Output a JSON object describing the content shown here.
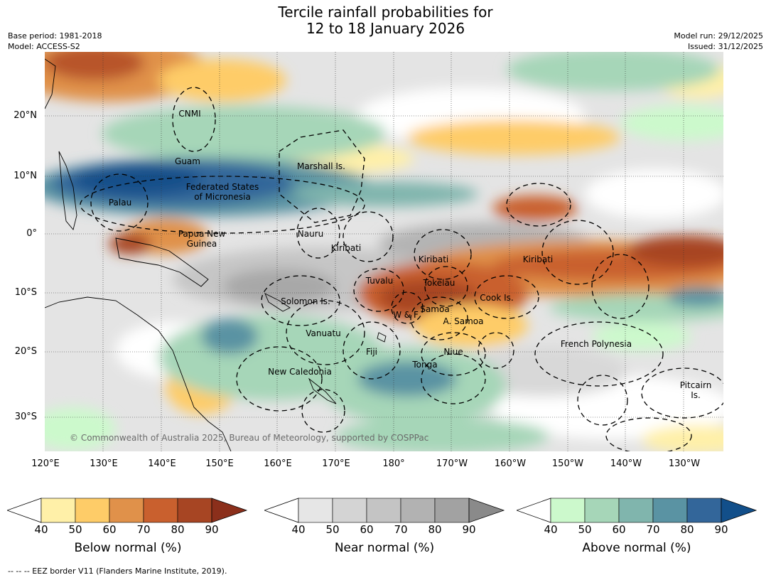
{
  "title_line1": "Tercile rainfall probabilities for",
  "title_line2": "12 to 18 January 2026",
  "base_period": "Base period: 1981-2018",
  "model": "Model: ACCESS-S2",
  "model_run": "Model run: 29/12/2025",
  "issued": "Issued: 31/12/2025",
  "lat_labels": [
    "20°N",
    "10°N",
    "0°",
    "10°S",
    "20°S",
    "30°S"
  ],
  "lon_labels": [
    "120°E",
    "130°E",
    "140°E",
    "150°E",
    "160°E",
    "170°E",
    "180°",
    "170°W",
    "160°W",
    "150°W",
    "140°W",
    "130°W"
  ],
  "regions": {
    "cnmi": "CNMI",
    "guam": "Guam",
    "marshall": "Marshall Is.",
    "fsm_1": "Federated States",
    "fsm_2": "of Micronesia",
    "palau": "Palau",
    "png_1": "Papua New",
    "png_2": "Guinea",
    "nauru": "Nauru",
    "kiribati_w": "Kiribati",
    "kiribati_c": "Kiribati",
    "kiribati_e": "Kiribati",
    "tuvalu": "Tuvalu",
    "tokelau": "Tokelau",
    "cook": "Cook Is.",
    "solomon": "Solomon Is.",
    "wf": "W & F",
    "samoa": "Samoa",
    "asamoa": "A. Samoa",
    "vanuatu": "Vanuatu",
    "fiji": "Fiji",
    "niue": "Niue",
    "french_poly": "French Polynesia",
    "tonga": "Tonga",
    "new_caledonia": "New Caledonia",
    "pitcairn_1": "Pitcairn",
    "pitcairn_2": "Is."
  },
  "copyright": "© Commonwealth of Australia 2025, Bureau of Meteorology, supported by COSPPac",
  "colorbars": [
    {
      "title": "Below normal (%)",
      "ticks": [
        "40",
        "50",
        "60",
        "70",
        "80",
        "90"
      ],
      "colors": [
        "#ffffff",
        "#fff0a8",
        "#fecc68",
        "#e0914a",
        "#c9602e",
        "#a74523",
        "#8b2f1b"
      ]
    },
    {
      "title": "Near normal (%)",
      "ticks": [
        "40",
        "50",
        "60",
        "70",
        "80",
        "90"
      ],
      "colors": [
        "#ffffff",
        "#e6e6e6",
        "#d4d4d4",
        "#c4c4c4",
        "#b2b2b2",
        "#a2a2a2",
        "#8a8a8a"
      ]
    },
    {
      "title": "Above normal (%)",
      "ticks": [
        "40",
        "50",
        "60",
        "70",
        "80",
        "90"
      ],
      "colors": [
        "#ffffff",
        "#ccf9cc",
        "#a6d6b8",
        "#80b5ad",
        "#5a93a3",
        "#33669a",
        "#124f8a"
      ]
    }
  ],
  "footnote": "--  --  -- EEZ border V11 (Flanders Marine Institute, 2019)."
}
